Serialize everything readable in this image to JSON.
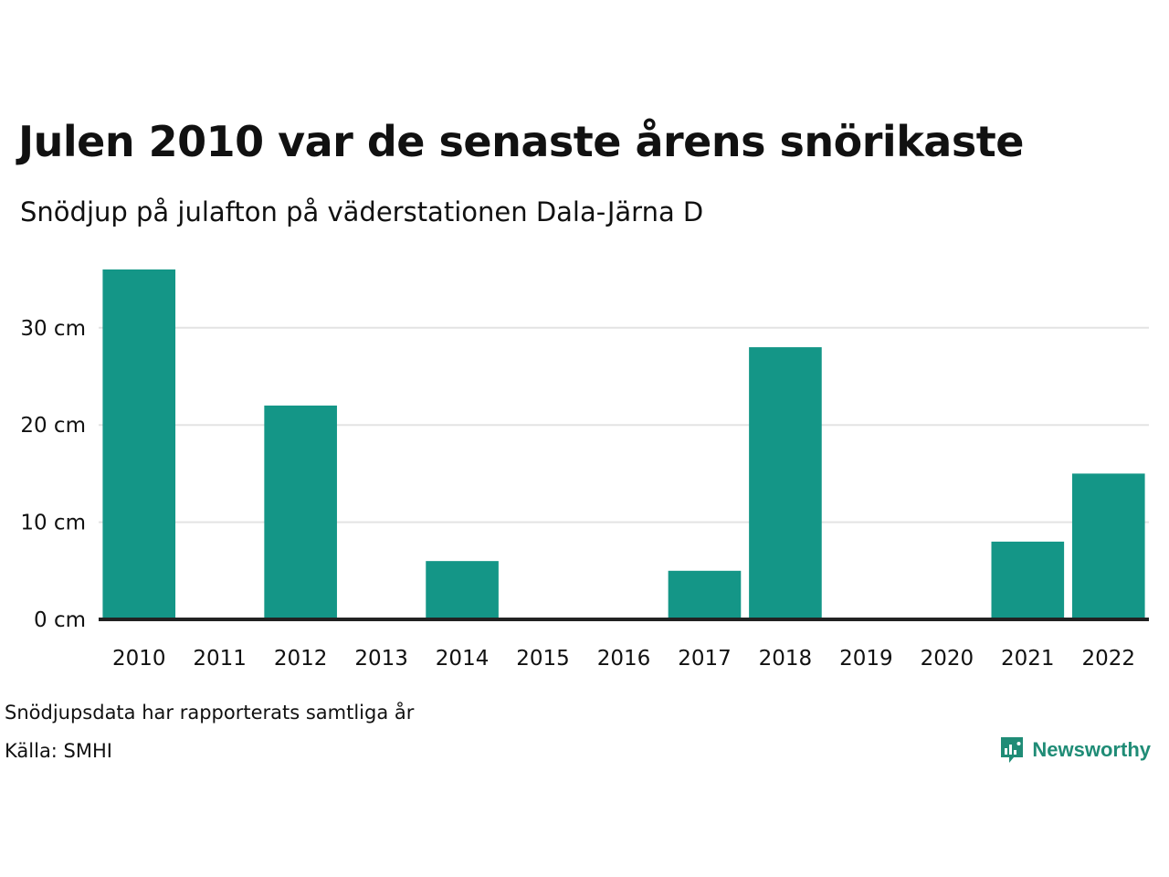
{
  "title": "Julen 2010 var de senaste årens snörikaste",
  "subtitle": "Snödjup på julafton på väderstationen Dala-Järna D",
  "footer": {
    "note": "Snödjupsdata har rapporterats samtliga år",
    "source": "Källa: SMHI",
    "brand": "Newsworthy",
    "brand_icon": "bar-chart-bubble-icon"
  },
  "colors": {
    "bar": "#149687",
    "grid": "#e3e3e3",
    "baseline": "#222222",
    "brand": "#1f8c76"
  },
  "chart_data": {
    "type": "bar",
    "categories": [
      "2010",
      "2011",
      "2012",
      "2013",
      "2014",
      "2015",
      "2016",
      "2017",
      "2018",
      "2019",
      "2020",
      "2021",
      "2022"
    ],
    "values": [
      36,
      0,
      22,
      0,
      6,
      0,
      0,
      5,
      28,
      0,
      0,
      8,
      15
    ],
    "ylim": [
      0,
      36
    ],
    "yticks": [
      0,
      10,
      20,
      30
    ],
    "ytick_labels": [
      "0 cm",
      "10 cm",
      "20 cm",
      "30 cm"
    ],
    "xlabel": "",
    "ylabel": "",
    "grid": true
  }
}
